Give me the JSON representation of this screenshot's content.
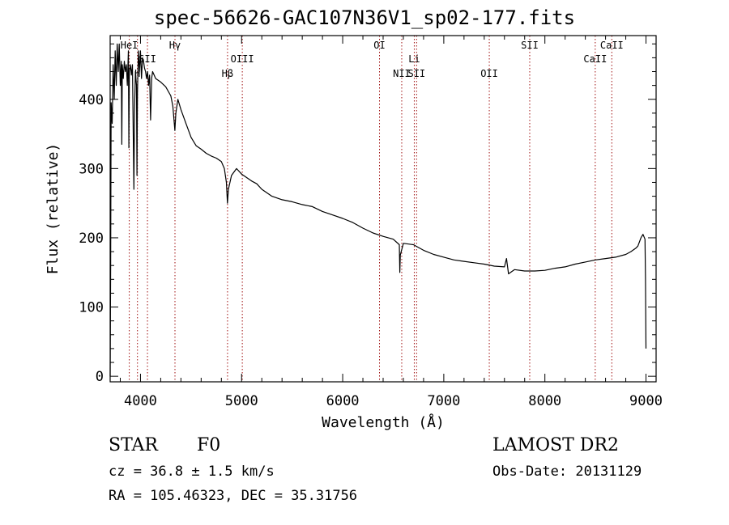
{
  "title": "spec-56626-GAC107N36V1_sp02-177.fits",
  "chart_data": {
    "type": "line",
    "title": "spec-56626-GAC107N36V1_sp02-177.fits",
    "xlabel": "Wavelength (Å)",
    "ylabel": "Flux (relative)",
    "xlim": [
      3700,
      9100
    ],
    "ylim": [
      -8,
      492
    ],
    "x_ticks": [
      4000,
      5000,
      6000,
      7000,
      8000,
      9000
    ],
    "y_ticks": [
      0,
      100,
      200,
      300,
      400
    ],
    "series": [
      {
        "name": "flux",
        "points": [
          [
            3700,
            0
          ],
          [
            3705,
            160
          ],
          [
            3710,
            395
          ],
          [
            3720,
            365
          ],
          [
            3730,
            450
          ],
          [
            3740,
            400
          ],
          [
            3750,
            470
          ],
          [
            3760,
            420
          ],
          [
            3770,
            480
          ],
          [
            3780,
            440
          ],
          [
            3790,
            480
          ],
          [
            3800,
            420
          ],
          [
            3810,
            455
          ],
          [
            3815,
            335
          ],
          [
            3820,
            450
          ],
          [
            3830,
            430
          ],
          [
            3840,
            455
          ],
          [
            3850,
            440
          ],
          [
            3860,
            450
          ],
          [
            3870,
            420
          ],
          [
            3880,
            470
          ],
          [
            3885,
            330
          ],
          [
            3890,
            440
          ],
          [
            3900,
            450
          ],
          [
            3910,
            435
          ],
          [
            3920,
            450
          ],
          [
            3930,
            330
          ],
          [
            3935,
            270
          ],
          [
            3940,
            380
          ],
          [
            3950,
            440
          ],
          [
            3960,
            420
          ],
          [
            3965,
            290
          ],
          [
            3970,
            410
          ],
          [
            3980,
            470
          ],
          [
            3990,
            440
          ],
          [
            4000,
            470
          ],
          [
            4010,
            430
          ],
          [
            4020,
            460
          ],
          [
            4030,
            455
          ],
          [
            4040,
            445
          ],
          [
            4050,
            440
          ],
          [
            4060,
            430
          ],
          [
            4070,
            440
          ],
          [
            4080,
            420
          ],
          [
            4090,
            435
          ],
          [
            4100,
            370
          ],
          [
            4110,
            430
          ],
          [
            4120,
            440
          ],
          [
            4150,
            430
          ],
          [
            4200,
            425
          ],
          [
            4250,
            418
          ],
          [
            4300,
            405
          ],
          [
            4320,
            390
          ],
          [
            4340,
            355
          ],
          [
            4350,
            380
          ],
          [
            4370,
            400
          ],
          [
            4400,
            385
          ],
          [
            4450,
            365
          ],
          [
            4500,
            345
          ],
          [
            4550,
            333
          ],
          [
            4600,
            328
          ],
          [
            4650,
            322
          ],
          [
            4700,
            318
          ],
          [
            4750,
            315
          ],
          [
            4800,
            310
          ],
          [
            4830,
            300
          ],
          [
            4850,
            280
          ],
          [
            4860,
            250
          ],
          [
            4870,
            270
          ],
          [
            4900,
            290
          ],
          [
            4950,
            300
          ],
          [
            5000,
            292
          ],
          [
            5050,
            287
          ],
          [
            5100,
            282
          ],
          [
            5150,
            278
          ],
          [
            5200,
            270
          ],
          [
            5300,
            260
          ],
          [
            5400,
            255
          ],
          [
            5500,
            252
          ],
          [
            5600,
            248
          ],
          [
            5700,
            245
          ],
          [
            5800,
            238
          ],
          [
            5900,
            233
          ],
          [
            6000,
            228
          ],
          [
            6100,
            222
          ],
          [
            6200,
            214
          ],
          [
            6300,
            207
          ],
          [
            6400,
            202
          ],
          [
            6500,
            198
          ],
          [
            6560,
            190
          ],
          [
            6565,
            150
          ],
          [
            6570,
            175
          ],
          [
            6600,
            192
          ],
          [
            6700,
            190
          ],
          [
            6800,
            182
          ],
          [
            6900,
            176
          ],
          [
            7000,
            172
          ],
          [
            7100,
            168
          ],
          [
            7200,
            166
          ],
          [
            7300,
            164
          ],
          [
            7400,
            162
          ],
          [
            7500,
            159
          ],
          [
            7600,
            158
          ],
          [
            7620,
            170
          ],
          [
            7640,
            148
          ],
          [
            7700,
            154
          ],
          [
            7800,
            152
          ],
          [
            7900,
            152
          ],
          [
            8000,
            153
          ],
          [
            8100,
            156
          ],
          [
            8200,
            158
          ],
          [
            8300,
            162
          ],
          [
            8400,
            165
          ],
          [
            8500,
            168
          ],
          [
            8600,
            170
          ],
          [
            8700,
            172
          ],
          [
            8800,
            176
          ],
          [
            8850,
            180
          ],
          [
            8900,
            185
          ],
          [
            8920,
            188
          ],
          [
            8950,
            200
          ],
          [
            8970,
            205
          ],
          [
            8990,
            198
          ],
          [
            8995,
            140
          ],
          [
            9000,
            40
          ]
        ]
      }
    ],
    "lines": [
      {
        "label": "HeI",
        "x": 3889,
        "row": 0
      },
      {
        "label": "H",
        "x": 3970,
        "row": 2
      },
      {
        "label": "SII",
        "x": 4069,
        "row": 1
      },
      {
        "label": "Hγ",
        "x": 4341,
        "row": 0
      },
      {
        "label": "Hβ",
        "x": 4861,
        "row": 2
      },
      {
        "label": "OIII",
        "x": 5007,
        "row": 1
      },
      {
        "label": "OI",
        "x": 6364,
        "row": 0
      },
      {
        "label": "NII",
        "x": 6584,
        "row": 2
      },
      {
        "label": "Li",
        "x": 6708,
        "row": 1
      },
      {
        "label": "SII",
        "x": 6731,
        "row": 2
      },
      {
        "label": "OII",
        "x": 7450,
        "row": 2
      },
      {
        "label": "SII",
        "x": 7850,
        "row": 0
      },
      {
        "label": "CaII",
        "x": 8498,
        "row": 1
      },
      {
        "label": "CaII",
        "x": 8662,
        "row": 0
      }
    ]
  },
  "info": {
    "object_type": "STAR",
    "spectral_class": "F0",
    "survey": "LAMOST DR2",
    "cz": "cz = 36.8 ± 1.5 km/s",
    "obs_date": "Obs-Date: 20131129",
    "coords": "RA = 105.46323, DEC =  35.31756"
  }
}
